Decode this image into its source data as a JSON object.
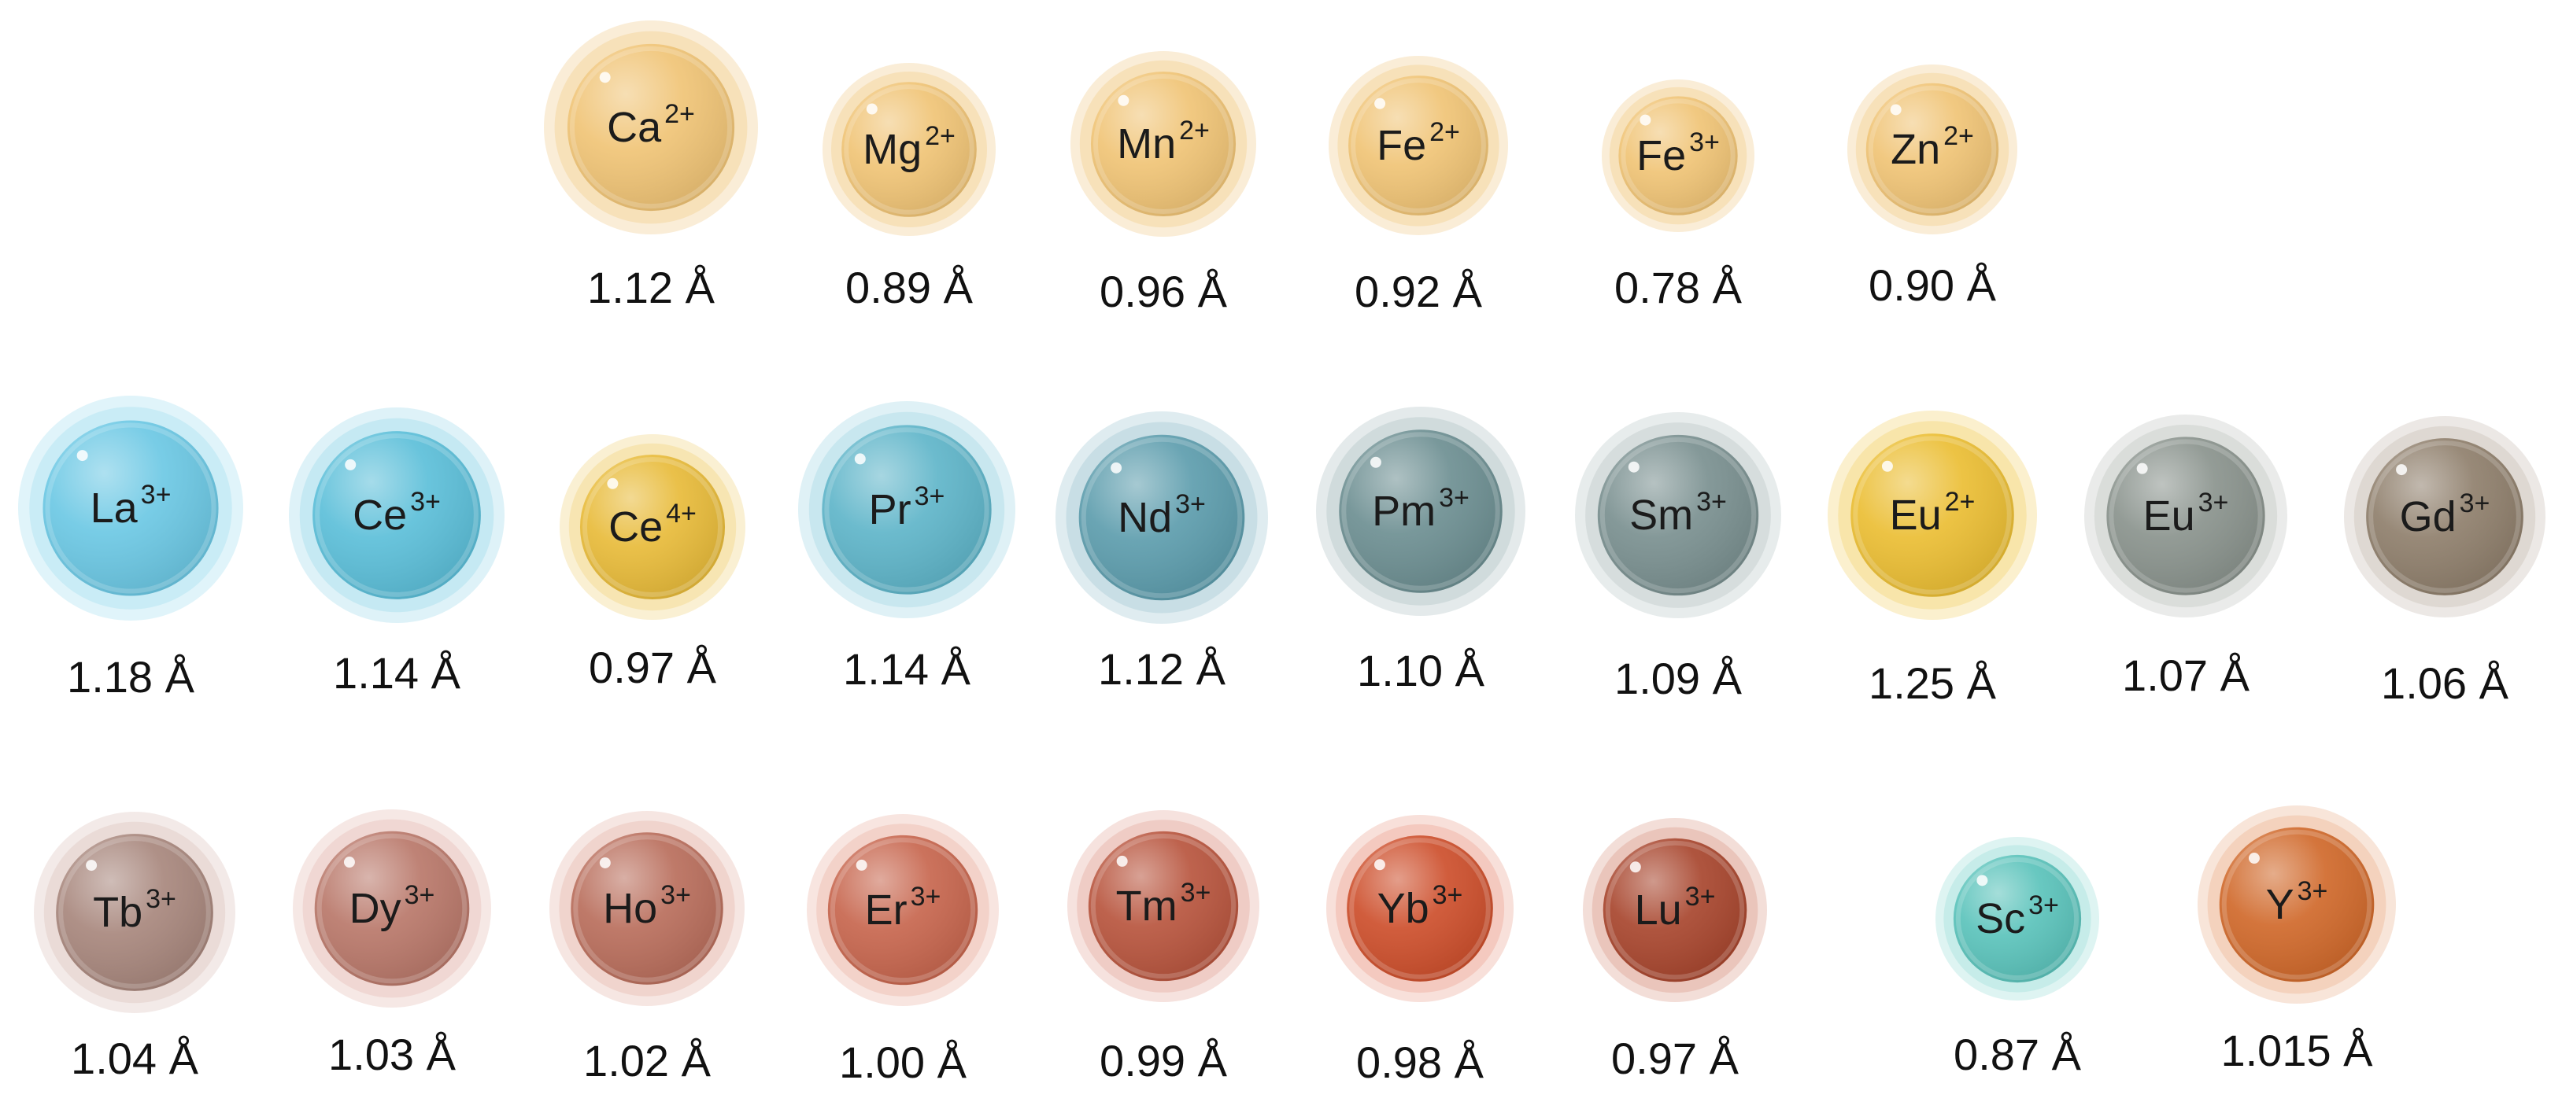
{
  "ions": [
    {
      "element": "Ca",
      "charge": "2+",
      "radius": "1.12 Å",
      "color": "#f0c476",
      "halo": "#f6dfb6"
    },
    {
      "element": "Mg",
      "charge": "2+",
      "radius": "0.89 Å",
      "color": "#f0c476",
      "halo": "#f6dfb6"
    },
    {
      "element": "Mn",
      "charge": "2+",
      "radius": "0.96 Å",
      "color": "#f0c476",
      "halo": "#f6dfb6"
    },
    {
      "element": "Fe",
      "charge": "2+",
      "radius": "0.92 Å",
      "color": "#f0c476",
      "halo": "#f6dfb6"
    },
    {
      "element": "Fe",
      "charge": "3+",
      "radius": "0.78 Å",
      "color": "#f0c476",
      "halo": "#f6dfb6"
    },
    {
      "element": "Zn",
      "charge": "2+",
      "radius": "0.90 Å",
      "color": "#f0c476",
      "halo": "#f6dfb6"
    },
    {
      "element": "La",
      "charge": "3+",
      "radius": "1.18 Å",
      "color": "#6cc8e4",
      "halo": "#c6ebf5"
    },
    {
      "element": "Ce",
      "charge": "3+",
      "radius": "1.14 Å",
      "color": "#5cbfd9",
      "halo": "#c2e8f2"
    },
    {
      "element": "Ce",
      "charge": "4+",
      "radius": "0.97 Å",
      "color": "#e8bb3a",
      "halo": "#f6e3ae"
    },
    {
      "element": "Pr",
      "charge": "3+",
      "radius": "1.14 Å",
      "color": "#5fb5c9",
      "halo": "#c5e6ee"
    },
    {
      "element": "Nd",
      "charge": "3+",
      "radius": "1.12 Å",
      "color": "#5d9dad",
      "halo": "#c5dde3"
    },
    {
      "element": "Pm",
      "charge": "3+",
      "radius": "1.10 Å",
      "color": "#6d8f92",
      "halo": "#cdd9da"
    },
    {
      "element": "Sm",
      "charge": "3+",
      "radius": "1.09 Å",
      "color": "#7a9090",
      "halo": "#d4dcdc"
    },
    {
      "element": "Eu",
      "charge": "2+",
      "radius": "1.25 Å",
      "color": "#ebbe34",
      "halo": "#f7e3a6"
    },
    {
      "element": "Eu",
      "charge": "3+",
      "radius": "1.07 Å",
      "color": "#8a938d",
      "halo": "#d8dbd8"
    },
    {
      "element": "Gd",
      "charge": "3+",
      "radius": "1.06 Å",
      "color": "#8f7f6c",
      "halo": "#ddd6cf"
    },
    {
      "element": "Tb",
      "charge": "3+",
      "radius": "1.04 Å",
      "color": "#a8877d",
      "halo": "#e9d9d5"
    },
    {
      "element": "Dy",
      "charge": "3+",
      "radius": "1.03 Å",
      "color": "#b9786a",
      "halo": "#efd5d0"
    },
    {
      "element": "Ho",
      "charge": "3+",
      "radius": "1.02 Å",
      "color": "#b96e5c",
      "halo": "#efd2cb"
    },
    {
      "element": "Er",
      "charge": "3+",
      "radius": "1.00 Å",
      "color": "#c7664e",
      "halo": "#f2cfc6"
    },
    {
      "element": "Tm",
      "charge": "3+",
      "radius": "0.99 Å",
      "color": "#b8553e",
      "halo": "#eecac2"
    },
    {
      "element": "Yb",
      "charge": "3+",
      "radius": "0.98 Å",
      "color": "#cd4f2c",
      "halo": "#f3c6bb"
    },
    {
      "element": "Lu",
      "charge": "3+",
      "radius": "0.97 Å",
      "color": "#a8462e",
      "halo": "#e9c2b8"
    },
    {
      "element": "Sc",
      "charge": "3+",
      "radius": "0.87 Å",
      "color": "#5bc3bb",
      "halo": "#c3ebe8"
    },
    {
      "element": "Y",
      "charge": "3+",
      "radius": "1.015 Å",
      "color": "#d0692b",
      "halo": "#f3cfb9"
    }
  ]
}
